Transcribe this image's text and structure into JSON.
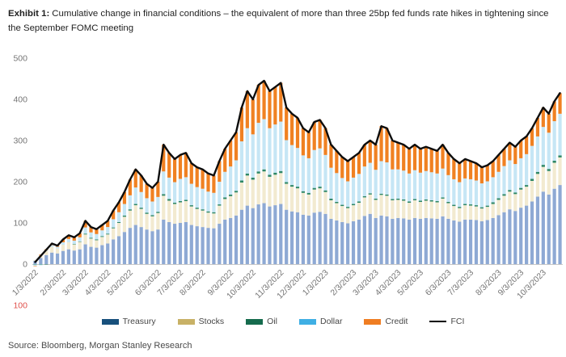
{
  "header": {
    "exhibit_label": "Exhibit 1:",
    "title": "Cumulative change in financial conditions – the equivalent of more than three 25bp fed funds rate hikes in tightening since the September FOMC meeting"
  },
  "footer": {
    "source": "Source: Bloomberg, Morgan Stanley Research"
  },
  "chart_data": {
    "type": "bar",
    "subtype": "stacked-bar-with-line",
    "title": "Cumulative change in financial conditions",
    "xlabel": "",
    "ylabel": "",
    "ylim": [
      -100,
      500
    ],
    "y_ticks": [
      500,
      400,
      300,
      200,
      100,
      0,
      -100
    ],
    "grid": false,
    "legend_position": "bottom",
    "negative_tick_style": "shown as absolute value in red",
    "n_points": 95,
    "x_labels": [
      "1/3/2022",
      "2/3/2022",
      "3/3/2022",
      "4/3/2022",
      "5/3/2022",
      "6/3/2022",
      "7/3/2022",
      "8/3/2022",
      "9/3/2022",
      "10/3/2022",
      "11/3/2022",
      "12/3/2022",
      "1/3/2023",
      "2/3/2023",
      "3/3/2023",
      "4/3/2023",
      "5/3/2023",
      "6/3/2023",
      "7/3/2023",
      "8/3/2023",
      "9/3/2023",
      "10/3/2023"
    ],
    "x_label_indices": [
      0,
      5,
      9,
      13,
      17,
      22,
      26,
      30,
      35,
      39,
      44,
      48,
      52,
      57,
      61,
      65,
      69,
      74,
      78,
      83,
      87,
      91
    ],
    "series": [
      {
        "name": "Treasury",
        "type": "bar",
        "color_legend": "#17507c",
        "color_bar": "#8ea9d4",
        "values": [
          8,
          15,
          22,
          28,
          26,
          32,
          36,
          33,
          36,
          48,
          42,
          40,
          46,
          50,
          60,
          68,
          78,
          88,
          95,
          90,
          84,
          80,
          84,
          108,
          102,
          98,
          100,
          102,
          95,
          92,
          90,
          88,
          87,
          98,
          108,
          112,
          118,
          132,
          142,
          136,
          145,
          148,
          140,
          143,
          146,
          132,
          128,
          126,
          120,
          118,
          125,
          127,
          122,
          110,
          106,
          102,
          99,
          104,
          108,
          117,
          122,
          112,
          118,
          116,
          110,
          112,
          111,
          108,
          112,
          110,
          112,
          111,
          110,
          116,
          110,
          106,
          103,
          108,
          108,
          107,
          104,
          107,
          112,
          119,
          126,
          133,
          129,
          137,
          142,
          152,
          164,
          176,
          169,
          183,
          192
        ]
      },
      {
        "name": "Stocks",
        "type": "bar",
        "color_legend": "#c8b166",
        "color_bar": "#f2ead0",
        "values": [
          2,
          6,
          10,
          14,
          12,
          15,
          17,
          15,
          18,
          24,
          20,
          18,
          20,
          22,
          27,
          32,
          37,
          42,
          48,
          44,
          38,
          36,
          40,
          58,
          52,
          48,
          50,
          51,
          45,
          42,
          40,
          37,
          36,
          44,
          50,
          53,
          56,
          66,
          73,
          69,
          75,
          77,
          72,
          74,
          75,
          63,
          60,
          58,
          53,
          51,
          56,
          57,
          53,
          45,
          42,
          39,
          37,
          39,
          41,
          45,
          47,
          44,
          50,
          50,
          45,
          44,
          43,
          41,
          43,
          41,
          42,
          41,
          40,
          43,
          38,
          35,
          33,
          35,
          34,
          33,
          31,
          32,
          34,
          37,
          40,
          43,
          41,
          44,
          46,
          50,
          55,
          60,
          57,
          63,
          67
        ]
      },
      {
        "name": "Oil",
        "type": "bar",
        "color_legend": "#156b4d",
        "color_bar": "#2e8766",
        "values": [
          -1,
          -1,
          -1,
          0,
          0,
          0,
          0,
          1,
          1,
          2,
          2,
          2,
          2,
          2,
          2,
          2,
          3,
          3,
          3,
          3,
          3,
          3,
          3,
          4,
          4,
          3,
          3,
          3,
          3,
          3,
          3,
          3,
          3,
          3,
          4,
          4,
          4,
          5,
          5,
          5,
          5,
          5,
          5,
          5,
          5,
          4,
          4,
          4,
          4,
          4,
          4,
          4,
          4,
          4,
          3,
          3,
          3,
          3,
          3,
          3,
          3,
          3,
          3,
          3,
          3,
          3,
          3,
          3,
          3,
          3,
          3,
          3,
          3,
          3,
          3,
          3,
          3,
          3,
          3,
          3,
          3,
          3,
          4,
          4,
          4,
          4,
          4,
          4,
          4,
          5,
          5,
          5,
          5,
          5,
          5
        ]
      },
      {
        "name": "Dollar",
        "type": "bar",
        "color_legend": "#3fafe4",
        "color_bar": "#c6e6f5",
        "values": [
          -3,
          -2,
          2,
          4,
          4,
          6,
          8,
          8,
          10,
          15,
          13,
          13,
          14,
          16,
          20,
          24,
          28,
          34,
          40,
          38,
          35,
          33,
          36,
          55,
          52,
          50,
          54,
          55,
          52,
          50,
          50,
          48,
          47,
          55,
          62,
          68,
          74,
          95,
          110,
          105,
          118,
          122,
          113,
          117,
          120,
          102,
          97,
          94,
          87,
          84,
          92,
          93,
          86,
          75,
          70,
          65,
          62,
          64,
          67,
          72,
          74,
          70,
          79,
          78,
          72,
          71,
          70,
          68,
          70,
          68,
          69,
          68,
          67,
          70,
          65,
          62,
          60,
          62,
          61,
          60,
          58,
          59,
          61,
          64,
          68,
          72,
          69,
          72,
          75,
          80,
          86,
          92,
          88,
          96,
          101
        ]
      },
      {
        "name": "Credit",
        "type": "bar",
        "color_legend": "#ef7d22",
        "color_bar": "#f08122",
        "values": [
          -1,
          2,
          2,
          4,
          3,
          7,
          9,
          8,
          10,
          16,
          13,
          12,
          13,
          15,
          21,
          24,
          29,
          38,
          44,
          40,
          35,
          33,
          37,
          65,
          60,
          56,
          58,
          59,
          50,
          48,
          47,
          44,
          42,
          50,
          56,
          63,
          68,
          82,
          90,
          85,
          92,
          93,
          90,
          91,
          94,
          79,
          76,
          73,
          66,
          63,
          68,
          69,
          65,
          56,
          54,
          51,
          49,
          50,
          51,
          53,
          54,
          61,
          85,
          83,
          70,
          65,
          63,
          60,
          62,
          58,
          59,
          57,
          55,
          58,
          54,
          49,
          46,
          47,
          44,
          42,
          39,
          39,
          39,
          41,
          42,
          43,
          42,
          43,
          43,
          43,
          45,
          47,
          46,
          48,
          50
        ]
      },
      {
        "name": "FCI",
        "type": "line",
        "color_legend": "#000000",
        "color_bar": "#0d0d0d",
        "values": [
          5,
          20,
          35,
          50,
          45,
          60,
          70,
          65,
          75,
          105,
          90,
          85,
          95,
          105,
          130,
          150,
          175,
          205,
          230,
          215,
          195,
          185,
          200,
          290,
          270,
          255,
          265,
          270,
          245,
          235,
          230,
          220,
          215,
          250,
          280,
          300,
          320,
          380,
          420,
          400,
          435,
          445,
          420,
          430,
          440,
          380,
          365,
          355,
          330,
          320,
          345,
          350,
          330,
          290,
          275,
          260,
          250,
          260,
          270,
          290,
          300,
          290,
          335,
          330,
          300,
          295,
          290,
          280,
          290,
          280,
          285,
          280,
          275,
          290,
          270,
          255,
          245,
          255,
          250,
          245,
          235,
          240,
          250,
          265,
          280,
          295,
          285,
          300,
          310,
          330,
          355,
          380,
          365,
          395,
          415
        ]
      }
    ]
  }
}
